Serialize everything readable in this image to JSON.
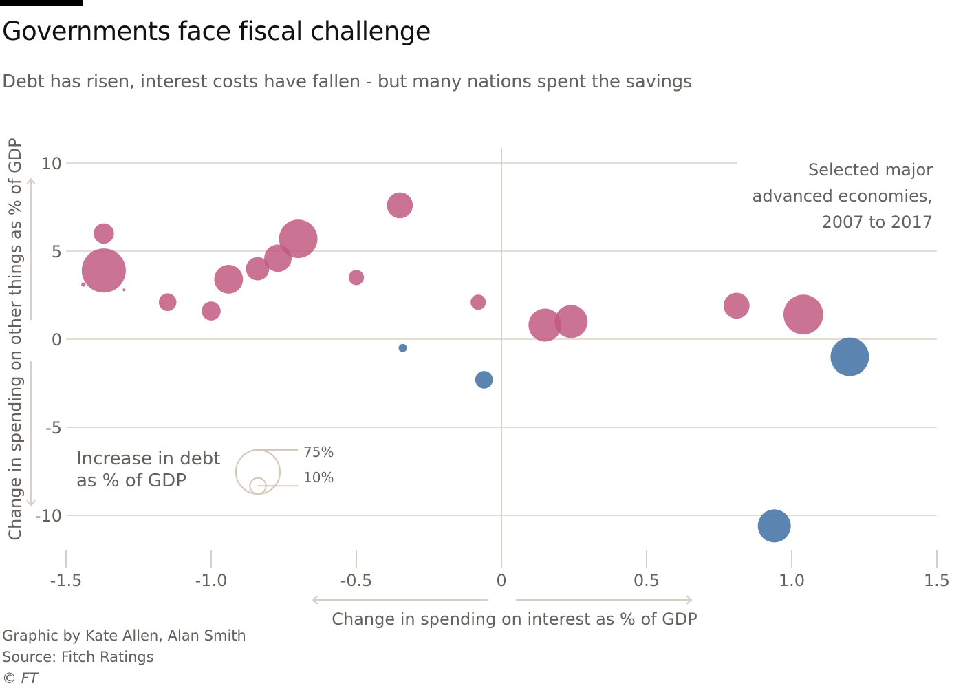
{
  "header": {
    "title": "Governments face fiscal challenge",
    "subtitle": "Debt has risen, interest costs have fallen - but many nations spent the savings"
  },
  "footer": {
    "credit": "Graphic by Kate Allen, Alan Smith",
    "source": "Source: Fitch Ratings",
    "copyright": "© FT"
  },
  "chart_data": {
    "type": "scatter",
    "title": "Governments face fiscal challenge",
    "xlabel": "Change in spending on interest as % of GDP",
    "ylabel": "Change in spending on other things as % of GDP",
    "xlim": [
      -1.5,
      1.5
    ],
    "ylim": [
      -10,
      10
    ],
    "xticks": [
      "-1.5",
      "-1.0",
      "-0.5",
      "0",
      "0.5",
      "1.0",
      "1.5"
    ],
    "xtick_values": [
      -1.5,
      -1.0,
      -0.5,
      0,
      0.5,
      1.0,
      1.5
    ],
    "yticks": [
      "10",
      "5",
      "0",
      "-5",
      "-10"
    ],
    "ytick_values": [
      10,
      5,
      0,
      -5,
      -10
    ],
    "annotation": [
      "Selected major",
      "advanced economies,",
      "2007 to 2017"
    ],
    "size_legend": {
      "title": [
        "Increase in debt",
        "as % of GDP"
      ],
      "entries": [
        {
          "label": "75%",
          "value": 75
        },
        {
          "label": "10%",
          "value": 10
        }
      ]
    },
    "colors": {
      "positive": "#c25a7f",
      "negative": "#3f6fa3",
      "grid": "#e6ddd3",
      "axis": "#d9cfc3"
    },
    "points": [
      {
        "x": -1.37,
        "y": 3.9,
        "size": 75
      },
      {
        "x": -1.37,
        "y": 6.0,
        "size": 16
      },
      {
        "x": -1.44,
        "y": 3.1,
        "size": 0.7
      },
      {
        "x": -1.3,
        "y": 2.8,
        "size": 0.3
      },
      {
        "x": -1.15,
        "y": 2.1,
        "size": 12
      },
      {
        "x": -1.0,
        "y": 1.6,
        "size": 14
      },
      {
        "x": -0.94,
        "y": 3.4,
        "size": 32
      },
      {
        "x": -0.84,
        "y": 4.0,
        "size": 21
      },
      {
        "x": -0.77,
        "y": 4.6,
        "size": 29
      },
      {
        "x": -0.7,
        "y": 5.7,
        "size": 57
      },
      {
        "x": -0.5,
        "y": 3.5,
        "size": 9
      },
      {
        "x": -0.35,
        "y": 7.6,
        "size": 26
      },
      {
        "x": -0.08,
        "y": 2.1,
        "size": 9
      },
      {
        "x": 0.15,
        "y": 0.8,
        "size": 42
      },
      {
        "x": 0.24,
        "y": 1.0,
        "size": 42
      },
      {
        "x": 0.81,
        "y": 1.9,
        "size": 26
      },
      {
        "x": 1.04,
        "y": 1.4,
        "size": 61
      },
      {
        "x": -0.34,
        "y": -0.5,
        "size": 2.6
      },
      {
        "x": -0.06,
        "y": -2.3,
        "size": 12
      },
      {
        "x": 1.2,
        "y": -1.0,
        "size": 57
      },
      {
        "x": 0.94,
        "y": -10.6,
        "size": 42
      }
    ]
  }
}
